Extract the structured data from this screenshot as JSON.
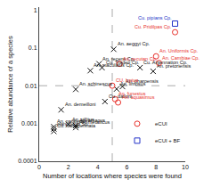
{
  "chart_data": {
    "type": "scatter",
    "xlabel": "Number of locations where species were found",
    "ylabel": "Relative abundance of a species",
    "log": "y",
    "grid": false,
    "legend": "lower right",
    "xlim": [
      0,
      10
    ],
    "ylim": [
      0.0001,
      1.2
    ],
    "xticks": [
      0,
      2,
      4,
      6,
      8,
      10
    ],
    "yticks": [
      0.0001,
      0.001,
      0.01,
      0.1,
      1
    ],
    "vline": 5,
    "hline": 0.01,
    "series": [
      {
        "color": "#111111",
        "marker": "x",
        "x": [
          5.1,
          4.1,
          3.5,
          4.3,
          2.5,
          5.3,
          5.7,
          4.5,
          1.5,
          2.0,
          1.0,
          1.0,
          1.0,
          2.5,
          2.5,
          7.8,
          6.9
        ],
        "values": [
          0.092,
          0.038,
          0.025,
          0.03,
          0.008,
          0.0082,
          0.0095,
          0.0038,
          0.0023,
          0.00095,
          0.00082,
          0.00072,
          0.00062,
          0.00088,
          0.00078,
          0.024,
          0.03
        ],
        "labels": [
          "An. aeggyi Cp.",
          "An. recens Cp.",
          "An. maculatus Cp.",
          "Cu. Traderi Cp.",
          "An. schinescus",
          "An. limosus",
          "An. pharoensis",
          "Cu. dalloni",
          "An. demeilloni",
          "An. villitus",
          "An. natalensis",
          "clanopenis Sp.",
          "Cu. fuscopennata",
          "An. amacus",
          "An. metallicus",
          "An. pretoriensis",
          "Cu. Antennation Cp."
        ]
      },
      {
        "name": "eCUI",
        "color": "#e8302a",
        "marker": "circle-open",
        "x": [
          5.0,
          5.2,
          5.4,
          5.5,
          8.0,
          8.2,
          9.3
        ],
        "values": [
          0.01,
          0.0044,
          0.0036,
          0.038,
          0.06,
          0.04,
          0.26
        ],
        "labels": [
          "CU. lypius",
          "An. funestus",
          "An. aquasimus",
          "An. recutan Cp.",
          "An. Uniformis Cp.",
          "An. Cambiae Cp.",
          "Cu. Pridilpas Cp."
        ]
      },
      {
        "name": "eCUI + BF",
        "color": "#2030c8",
        "marker": "square-open",
        "x": [
          9.3
        ],
        "values": [
          0.44
        ],
        "labels": [
          "Cu. pipians Cp."
        ]
      }
    ]
  }
}
